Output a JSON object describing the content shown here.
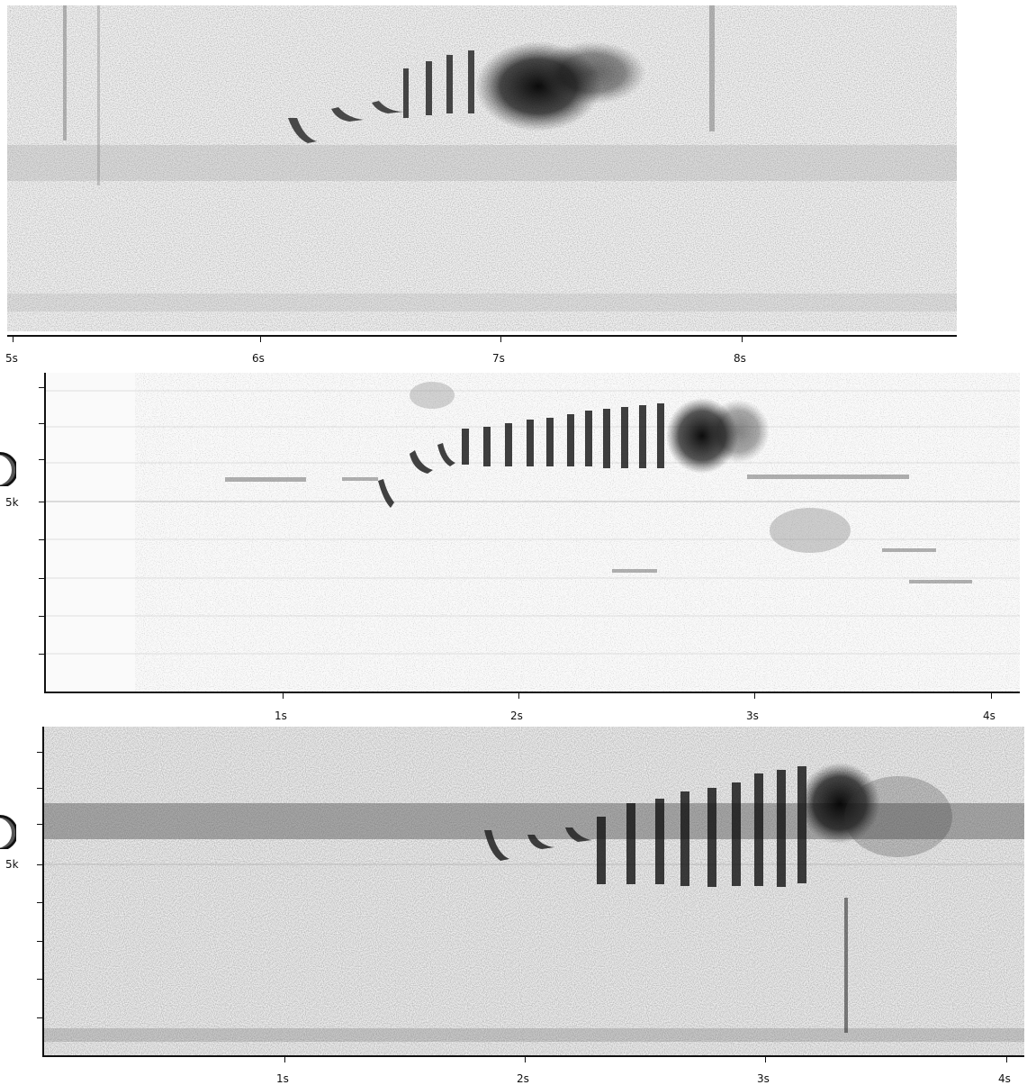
{
  "colors": {
    "ink": "#111111",
    "background": "#f3f3f3"
  },
  "panels": [
    {
      "id": "top",
      "xticks": [
        "5s",
        "6s",
        "7s",
        "8s"
      ],
      "yticks": []
    },
    {
      "id": "middle",
      "xticks": [
        "1s",
        "2s",
        "3s",
        "4s"
      ],
      "ylabel": "5k",
      "icon": "play-icon"
    },
    {
      "id": "bottom",
      "xticks": [
        "1s",
        "2s",
        "3s",
        "4s"
      ],
      "ylabel": "5k",
      "icon": "play-icon"
    }
  ]
}
